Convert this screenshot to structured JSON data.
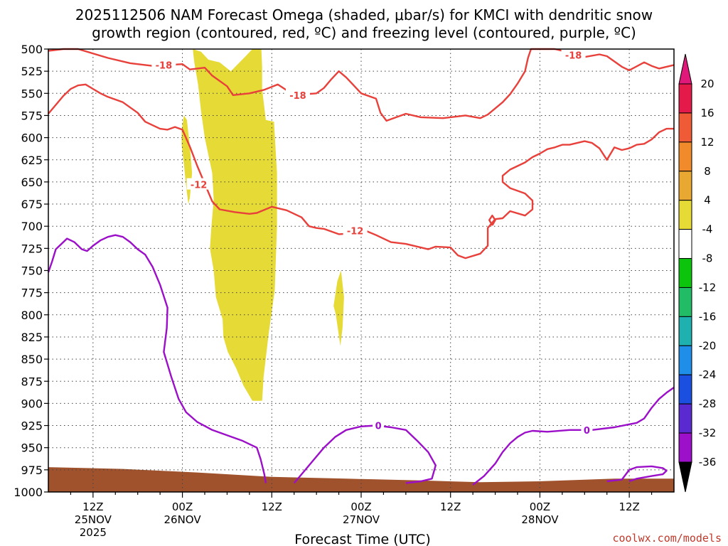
{
  "chart_data": {
    "type": "contour",
    "title_line1": "2025112506 NAM Forecast Omega (shaded, μbar/s) for KMCI with dendritic snow",
    "title_line2": "growth region (contoured, red, ºC) and freezing level (contoured, purple, ºC)",
    "xlabel": "Forecast Time (UTC)",
    "credit": "coolwx.com/models",
    "pressure_levels": [
      500,
      525,
      550,
      575,
      600,
      625,
      650,
      675,
      700,
      725,
      750,
      775,
      800,
      825,
      850,
      875,
      900,
      925,
      950,
      975,
      1000
    ],
    "ylim": [
      500,
      1000
    ],
    "xlim_hours": [
      0,
      84
    ],
    "x_ticks": [
      {
        "hour": 6,
        "l1": "12Z",
        "l2": "25NOV",
        "l3": "2025"
      },
      {
        "hour": 18,
        "l1": "00Z",
        "l2": "26NOV",
        "l3": ""
      },
      {
        "hour": 30,
        "l1": "12Z",
        "l2": "",
        "l3": ""
      },
      {
        "hour": 42,
        "l1": "00Z",
        "l2": "27NOV",
        "l3": ""
      },
      {
        "hour": 54,
        "l1": "12Z",
        "l2": "",
        "l3": ""
      },
      {
        "hour": 66,
        "l1": "00Z",
        "l2": "28NOV",
        "l3": ""
      },
      {
        "hour": 78,
        "l1": "12Z",
        "l2": "",
        "l3": ""
      }
    ],
    "colorbar": {
      "labels": [
        "20",
        "16",
        "12",
        "8",
        "4",
        "-4",
        "-8",
        "-12",
        "-16",
        "-20",
        "-24",
        "-28",
        "-32",
        "-36"
      ],
      "colors": [
        "#e41a4a",
        "#ef5a37",
        "#f08a2a",
        "#e8a832",
        "#e6da36",
        "#ffffff",
        "#0cc40c",
        "#22bb66",
        "#1fb0b0",
        "#1e8ee8",
        "#1a4fe0",
        "#5a2ad0",
        "#9b10c8",
        "#a8a8a8"
      ],
      "top_arrow_color": "#e0187a",
      "bottom_arrow_color": "#000000"
    },
    "contour_labels": {
      "red": [
        "-18",
        "-18",
        "-18",
        "-12",
        "-12"
      ],
      "purple": [
        "0",
        "0"
      ]
    },
    "series": [
      {
        "name": "dgz_minus18_top",
        "color": "#e8403a",
        "points": [
          [
            0,
            502
          ],
          [
            2,
            500
          ],
          [
            4,
            500
          ],
          [
            8,
            510
          ],
          [
            11,
            516
          ],
          [
            14,
            519
          ],
          [
            18,
            517
          ],
          [
            19,
            523
          ],
          [
            21,
            521
          ],
          [
            22,
            530
          ],
          [
            24,
            542
          ],
          [
            24.8,
            552
          ],
          [
            27,
            550
          ],
          [
            29,
            546
          ],
          [
            30.8,
            540
          ],
          [
            33,
            552
          ],
          [
            36,
            550
          ],
          [
            37,
            544
          ],
          [
            38,
            534
          ],
          [
            39,
            525
          ],
          [
            40,
            532
          ],
          [
            41,
            541
          ],
          [
            42,
            550
          ],
          [
            44,
            556
          ],
          [
            44.6,
            572
          ],
          [
            45.4,
            581
          ],
          [
            48,
            573
          ],
          [
            50,
            577
          ],
          [
            53,
            578
          ],
          [
            56,
            575
          ],
          [
            58,
            578
          ],
          [
            59,
            574
          ],
          [
            61,
            560
          ],
          [
            62,
            551
          ],
          [
            63,
            539
          ],
          [
            64,
            525
          ],
          [
            64.4,
            510
          ],
          [
            64.8,
            500
          ],
          [
            68,
            500
          ],
          [
            69,
            502
          ],
          [
            70,
            506
          ],
          [
            72,
            509
          ],
          [
            74,
            506
          ],
          [
            75,
            508
          ],
          [
            77,
            520
          ],
          [
            78,
            524
          ],
          [
            80,
            515
          ],
          [
            81,
            519
          ],
          [
            82,
            522
          ],
          [
            84,
            518
          ]
        ]
      },
      {
        "name": "dgz_minus18_mid",
        "color": "#e8403a",
        "points": [
          [
            0,
            573
          ],
          [
            1,
            563
          ],
          [
            2,
            553
          ],
          [
            3,
            545
          ],
          [
            4,
            541
          ],
          [
            5,
            540
          ],
          [
            6,
            545
          ],
          [
            7,
            550
          ],
          [
            8,
            554
          ],
          [
            10,
            560
          ],
          [
            12,
            572
          ],
          [
            13,
            582
          ],
          [
            15,
            590
          ],
          [
            16,
            591
          ],
          [
            17,
            588
          ],
          [
            18,
            591
          ],
          [
            19,
            610
          ],
          [
            20,
            632
          ],
          [
            21,
            652
          ],
          [
            22,
            672
          ],
          [
            23,
            681
          ],
          [
            25,
            684
          ],
          [
            27,
            686
          ],
          [
            28,
            685
          ],
          [
            30,
            678
          ],
          [
            32,
            682
          ],
          [
            34,
            690
          ],
          [
            35,
            700
          ],
          [
            36,
            702
          ],
          [
            37,
            703
          ],
          [
            39,
            709
          ],
          [
            41,
            708
          ],
          [
            42,
            703
          ],
          [
            44,
            710
          ],
          [
            46,
            718
          ],
          [
            48,
            720
          ],
          [
            50,
            724
          ],
          [
            51,
            726
          ],
          [
            52,
            723
          ],
          [
            54,
            724
          ],
          [
            55,
            733
          ],
          [
            56,
            736
          ],
          [
            58,
            731
          ],
          [
            59,
            722
          ],
          [
            59,
            702
          ],
          [
            60,
            692
          ],
          [
            61,
            691
          ],
          [
            62,
            683
          ],
          [
            64,
            688
          ],
          [
            65,
            681
          ],
          [
            65,
            671
          ],
          [
            64,
            663
          ],
          [
            62,
            657
          ],
          [
            61,
            650
          ],
          [
            61,
            643
          ],
          [
            62,
            636
          ],
          [
            64,
            628
          ],
          [
            65,
            622
          ],
          [
            66,
            618
          ],
          [
            67,
            613
          ],
          [
            68,
            611
          ],
          [
            69,
            608
          ],
          [
            70,
            608
          ],
          [
            72,
            604
          ],
          [
            73,
            606
          ],
          [
            74,
            612
          ],
          [
            75,
            625
          ],
          [
            76,
            611
          ],
          [
            77,
            614
          ],
          [
            78,
            612
          ],
          [
            79,
            608
          ],
          [
            80,
            607
          ],
          [
            81,
            602
          ],
          [
            82,
            594
          ],
          [
            83,
            590
          ],
          [
            84,
            590
          ]
        ]
      },
      {
        "name": "dgz_island",
        "color": "#e8403a",
        "points": [
          [
            59.6,
            699
          ],
          [
            59.2,
            693
          ],
          [
            59.6,
            688
          ],
          [
            60,
            693
          ],
          [
            59.6,
            699
          ]
        ]
      },
      {
        "name": "freezing_0C_left",
        "color": "#9b0fc8",
        "points": [
          [
            0,
            752
          ],
          [
            0.5,
            740
          ],
          [
            1,
            726
          ],
          [
            2,
            718
          ],
          [
            2.5,
            714
          ],
          [
            3.5,
            718
          ],
          [
            4.5,
            726
          ],
          [
            5.2,
            728
          ],
          [
            6,
            722
          ],
          [
            7,
            716
          ],
          [
            8,
            712
          ],
          [
            9,
            710
          ],
          [
            10,
            712
          ],
          [
            11,
            718
          ],
          [
            12,
            726
          ],
          [
            13,
            732
          ],
          [
            14,
            746
          ],
          [
            15,
            766
          ],
          [
            16,
            792
          ],
          [
            15.9,
            815
          ],
          [
            15.5,
            842
          ],
          [
            16.5,
            870
          ],
          [
            17.5,
            895
          ],
          [
            18.5,
            910
          ],
          [
            20,
            921
          ],
          [
            22,
            930
          ],
          [
            24,
            936
          ],
          [
            26,
            942
          ],
          [
            28,
            950
          ],
          [
            28.5,
            963
          ],
          [
            29,
            980
          ],
          [
            29.2,
            990
          ]
        ]
      },
      {
        "name": "freezing_0C_mid",
        "color": "#9b0fc8",
        "points": [
          [
            33,
            990
          ],
          [
            34,
            980
          ],
          [
            35.5,
            965
          ],
          [
            37,
            950
          ],
          [
            38.5,
            938
          ],
          [
            40,
            930
          ],
          [
            42,
            926
          ],
          [
            44,
            925
          ],
          [
            46,
            927
          ],
          [
            48,
            930
          ],
          [
            49.5,
            942
          ],
          [
            51,
            955
          ],
          [
            52,
            970
          ],
          [
            51.5,
            985
          ],
          [
            50,
            988
          ],
          [
            48,
            990
          ]
        ]
      },
      {
        "name": "freezing_0C_right",
        "color": "#9b0fc8",
        "points": [
          [
            57,
            992
          ],
          [
            58.5,
            982
          ],
          [
            60,
            968
          ],
          [
            61,
            955
          ],
          [
            62,
            945
          ],
          [
            63,
            938
          ],
          [
            64,
            933
          ],
          [
            65,
            931
          ],
          [
            67,
            932
          ],
          [
            70,
            930
          ],
          [
            73,
            930
          ],
          [
            76,
            927
          ],
          [
            79,
            922
          ],
          [
            80,
            917
          ],
          [
            81,
            905
          ],
          [
            82,
            895
          ],
          [
            83,
            888
          ],
          [
            84,
            882
          ]
        ]
      },
      {
        "name": "freezing_0C_lobe",
        "color": "#9b0fc8",
        "points": [
          [
            75,
            988
          ],
          [
            77,
            986
          ],
          [
            78,
            975
          ],
          [
            79,
            972
          ],
          [
            81,
            971
          ],
          [
            82.5,
            973
          ],
          [
            83,
            976
          ],
          [
            82.5,
            980
          ],
          [
            81,
            982
          ],
          [
            79,
            985
          ],
          [
            78,
            988
          ]
        ]
      }
    ],
    "omega_shaded_regions": [
      {
        "name": "upward_motion_main",
        "color": "#e6da36",
        "points": [
          [
            19.4,
            500
          ],
          [
            20.5,
            503
          ],
          [
            21.5,
            512
          ],
          [
            23,
            515
          ],
          [
            24.5,
            525
          ],
          [
            25.8,
            514
          ],
          [
            26.5,
            508
          ],
          [
            27.4,
            500
          ],
          [
            28.6,
            500
          ],
          [
            28.7,
            520
          ],
          [
            28.7,
            545
          ],
          [
            29.2,
            580
          ],
          [
            30.3,
            582
          ],
          [
            30.7,
            640
          ],
          [
            30.7,
            700
          ],
          [
            30.4,
            772
          ],
          [
            29.6,
            820
          ],
          [
            28.9,
            870
          ],
          [
            28.7,
            897
          ],
          [
            27.4,
            897
          ],
          [
            26.2,
            880
          ],
          [
            25.2,
            860
          ],
          [
            24.1,
            842
          ],
          [
            23.5,
            825
          ],
          [
            23.4,
            805
          ],
          [
            22.5,
            780
          ],
          [
            22.2,
            750
          ],
          [
            21.7,
            725
          ],
          [
            21.9,
            700
          ],
          [
            22.2,
            670
          ],
          [
            22.0,
            640
          ],
          [
            21.0,
            600
          ],
          [
            20.5,
            570
          ],
          [
            20.1,
            540
          ],
          [
            19.6,
            515
          ]
        ]
      },
      {
        "name": "upward_motion_left",
        "color": "#e6da36",
        "points": [
          [
            17.9,
            592
          ],
          [
            18.2,
            575
          ],
          [
            18.6,
            580
          ],
          [
            19.0,
            610
          ],
          [
            19.3,
            640
          ],
          [
            19.0,
            668
          ],
          [
            18.8,
            675
          ],
          [
            18.5,
            655
          ],
          [
            18.2,
            630
          ],
          [
            17.9,
            608
          ]
        ]
      },
      {
        "name": "upward_motion_small",
        "color": "#e6da36",
        "points": [
          [
            38.8,
            762
          ],
          [
            39.3,
            750
          ],
          [
            39.7,
            780
          ],
          [
            39.5,
            815
          ],
          [
            39.2,
            835
          ],
          [
            38.6,
            800
          ],
          [
            38.3,
            790
          ]
        ]
      }
    ],
    "terrain": {
      "name": "surface",
      "color": "#a0522d",
      "points": [
        [
          0,
          972
        ],
        [
          10,
          974
        ],
        [
          20,
          978
        ],
        [
          30,
          983
        ],
        [
          40,
          985
        ],
        [
          50,
          987
        ],
        [
          58,
          989
        ],
        [
          66,
          988
        ],
        [
          76,
          985
        ],
        [
          84,
          985
        ]
      ]
    }
  }
}
